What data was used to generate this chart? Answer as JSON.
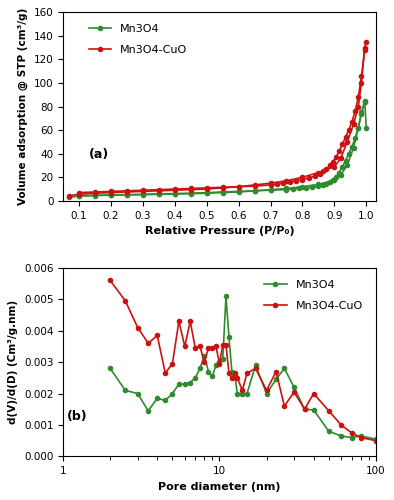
{
  "panel_a": {
    "title": "(a)",
    "xlabel": "Relative Pressure (P/P₀)",
    "ylabel": "Volume adsorption @ STP (cm³/g)",
    "ylim": [
      0,
      160
    ],
    "yticks": [
      0,
      20,
      40,
      60,
      80,
      100,
      120,
      140,
      160
    ],
    "xlim": [
      0.05,
      1.03
    ],
    "xticks": [
      0.1,
      0.2,
      0.3,
      0.4,
      0.5,
      0.6,
      0.7,
      0.8,
      0.9,
      1.0
    ],
    "mn3o4_adsorption_x": [
      0.07,
      0.1,
      0.15,
      0.2,
      0.25,
      0.3,
      0.35,
      0.4,
      0.45,
      0.5,
      0.55,
      0.6,
      0.65,
      0.7,
      0.75,
      0.8,
      0.85,
      0.9,
      0.92,
      0.94,
      0.96,
      0.975,
      0.985,
      0.995,
      1.0
    ],
    "mn3o4_adsorption_y": [
      3.0,
      4.0,
      4.5,
      4.8,
      5.0,
      5.2,
      5.5,
      5.8,
      6.0,
      6.5,
      7.0,
      7.5,
      8.5,
      9.5,
      10.5,
      12.0,
      14.0,
      17.5,
      22.0,
      30.0,
      45.0,
      62.0,
      75.0,
      85.0,
      62.0
    ],
    "mn3o4_desorption_x": [
      0.995,
      0.985,
      0.975,
      0.965,
      0.955,
      0.945,
      0.935,
      0.925,
      0.915,
      0.905,
      0.895,
      0.885,
      0.875,
      0.865,
      0.85,
      0.83,
      0.81,
      0.79,
      0.77,
      0.75,
      0.7,
      0.65,
      0.6,
      0.55,
      0.5,
      0.45,
      0.4,
      0.35,
      0.3,
      0.25,
      0.2,
      0.15,
      0.1
    ],
    "mn3o4_desorption_y": [
      84.0,
      74.0,
      62.0,
      53.0,
      46.0,
      40.0,
      34.0,
      29.0,
      24.0,
      20.0,
      17.5,
      16.0,
      14.5,
      13.5,
      12.5,
      11.5,
      11.0,
      10.5,
      10.0,
      9.5,
      9.0,
      8.5,
      8.0,
      7.5,
      7.0,
      6.5,
      6.2,
      5.9,
      5.6,
      5.3,
      5.0,
      4.7,
      4.2
    ],
    "mn3o4cuo_adsorption_x": [
      0.07,
      0.1,
      0.15,
      0.2,
      0.25,
      0.3,
      0.35,
      0.4,
      0.45,
      0.5,
      0.55,
      0.6,
      0.65,
      0.7,
      0.75,
      0.8,
      0.85,
      0.9,
      0.92,
      0.94,
      0.96,
      0.975,
      0.985,
      0.995,
      1.0
    ],
    "mn3o4cuo_adsorption_y": [
      4.5,
      5.5,
      6.5,
      7.0,
      7.5,
      8.0,
      8.5,
      9.0,
      9.5,
      10.0,
      11.0,
      12.0,
      13.5,
      15.0,
      17.0,
      20.0,
      24.0,
      29.0,
      36.0,
      50.0,
      65.0,
      80.0,
      100.0,
      130.0,
      135.0
    ],
    "mn3o4cuo_desorption_x": [
      0.995,
      0.985,
      0.975,
      0.965,
      0.955,
      0.945,
      0.935,
      0.925,
      0.915,
      0.905,
      0.895,
      0.885,
      0.875,
      0.865,
      0.855,
      0.84,
      0.82,
      0.8,
      0.78,
      0.76,
      0.74,
      0.72,
      0.7,
      0.65,
      0.6,
      0.55,
      0.5,
      0.45,
      0.4,
      0.35,
      0.3,
      0.25,
      0.2,
      0.15,
      0.1
    ],
    "mn3o4cuo_desorption_y": [
      128.0,
      106.0,
      88.0,
      76.0,
      67.0,
      60.0,
      54.0,
      48.0,
      42.0,
      37.0,
      33.0,
      30.0,
      27.0,
      25.0,
      23.0,
      21.0,
      19.5,
      18.0,
      17.0,
      16.0,
      15.0,
      14.0,
      13.5,
      12.5,
      12.0,
      11.5,
      11.0,
      10.5,
      10.0,
      9.5,
      9.0,
      8.5,
      8.0,
      7.5,
      7.0
    ],
    "color_mn3o4": "#2e8b2e",
    "color_mn3o4cuo": "#cc1111",
    "legend_labels": [
      "Mn3O4",
      "Mn3O4-CuO"
    ]
  },
  "panel_b": {
    "title": "(b)",
    "xlabel": "Pore diameter (nm)",
    "ylabel": "d(V)/d(D) (Cm³/g.nm)",
    "ylim": [
      0,
      0.006
    ],
    "yticks": [
      0,
      0.001,
      0.002,
      0.003,
      0.004,
      0.005,
      0.006
    ],
    "xlim": [
      1,
      100
    ],
    "color_mn3o4": "#2e8b2e",
    "color_mn3o4cuo": "#cc1111",
    "legend_labels": [
      "Mn3O4",
      "Mn3O4-CuO"
    ],
    "mn3o4_x": [
      2.0,
      2.5,
      3.0,
      3.5,
      4.0,
      4.5,
      5.0,
      5.5,
      6.0,
      6.5,
      7.0,
      7.5,
      8.0,
      8.5,
      9.0,
      9.5,
      10.0,
      10.5,
      11.0,
      11.5,
      12.0,
      12.5,
      13.0,
      14.0,
      15.0,
      17.0,
      20.0,
      23.0,
      26.0,
      30.0,
      35.0,
      40.0,
      50.0,
      60.0,
      70.0,
      80.0,
      100.0
    ],
    "mn3o4_y": [
      0.0028,
      0.0021,
      0.002,
      0.00145,
      0.00185,
      0.00178,
      0.002,
      0.0023,
      0.0023,
      0.00235,
      0.0025,
      0.0028,
      0.0032,
      0.0027,
      0.00255,
      0.0029,
      0.003,
      0.0031,
      0.0051,
      0.0038,
      0.0027,
      0.0026,
      0.002,
      0.002,
      0.002,
      0.0029,
      0.002,
      0.00245,
      0.0028,
      0.0022,
      0.0015,
      0.00148,
      0.0008,
      0.00065,
      0.0006,
      0.00065,
      0.00055
    ],
    "mn3o4cuo_x": [
      2.0,
      2.5,
      3.0,
      3.5,
      4.0,
      4.5,
      5.0,
      5.5,
      6.0,
      6.5,
      7.0,
      7.5,
      8.0,
      8.5,
      9.0,
      9.5,
      10.0,
      10.5,
      11.0,
      11.5,
      12.0,
      12.5,
      13.0,
      14.0,
      15.0,
      17.0,
      20.0,
      23.0,
      26.0,
      30.0,
      35.0,
      40.0,
      50.0,
      60.0,
      70.0,
      80.0,
      100.0
    ],
    "mn3o4cuo_y": [
      0.0056,
      0.00495,
      0.0041,
      0.0036,
      0.00385,
      0.00265,
      0.00295,
      0.0043,
      0.0035,
      0.0043,
      0.00345,
      0.0035,
      0.003,
      0.00345,
      0.00345,
      0.0035,
      0.00295,
      0.00355,
      0.00355,
      0.00265,
      0.0025,
      0.00265,
      0.0025,
      0.0021,
      0.00265,
      0.0028,
      0.0021,
      0.0027,
      0.0016,
      0.00205,
      0.0015,
      0.002,
      0.00145,
      0.001,
      0.00075,
      0.0006,
      0.0005
    ]
  },
  "bg_color": "#ffffff"
}
